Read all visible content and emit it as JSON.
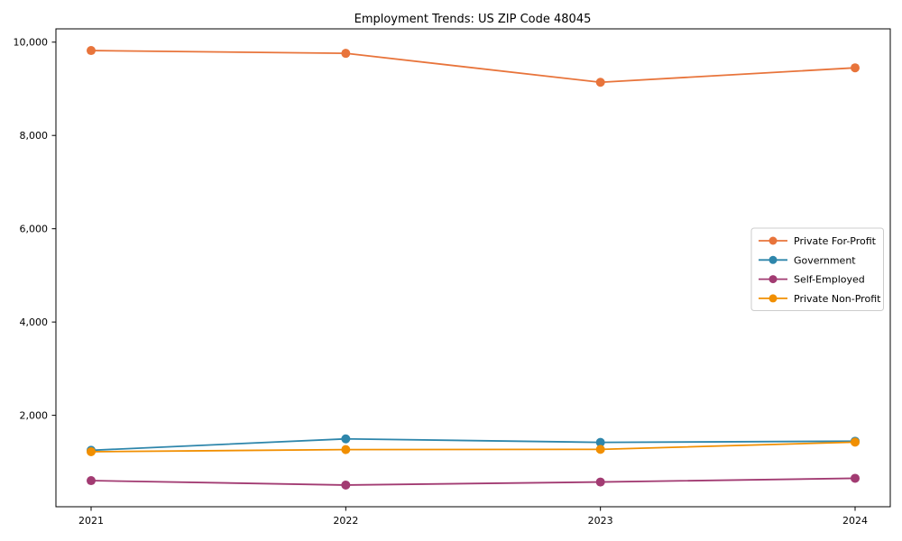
{
  "figure": {
    "background": "#ffffff",
    "axes_color": "#000000",
    "legend_border_color": "#cccccc",
    "legend_background": "#ffffff"
  },
  "chart_data": {
    "type": "line",
    "title": "Employment Trends: US ZIP Code 48045",
    "xlabel": "",
    "ylabel": "",
    "grid": false,
    "legend_position": "center right",
    "x": [
      2021,
      2022,
      2023,
      2024
    ],
    "x_tick_labels": [
      "2021",
      "2022",
      "2023",
      "2024"
    ],
    "y_ticks": [
      2000,
      4000,
      6000,
      8000,
      10000
    ],
    "y_tick_labels": [
      "2,000",
      "4,000",
      "6,000",
      "8,000",
      "10,000"
    ],
    "ylim": [
      40,
      10285
    ],
    "marker": "o",
    "series": [
      {
        "name": "Private For-Profit",
        "color": "#E8743B",
        "values": [
          9820,
          9760,
          9140,
          9450
        ]
      },
      {
        "name": "Government",
        "color": "#2E86AB",
        "values": [
          1250,
          1495,
          1420,
          1445
        ]
      },
      {
        "name": "Self-Employed",
        "color": "#A23B72",
        "values": [
          600,
          505,
          570,
          650
        ]
      },
      {
        "name": "Private Non-Profit",
        "color": "#F18F01",
        "values": [
          1220,
          1265,
          1270,
          1425
        ]
      }
    ]
  }
}
